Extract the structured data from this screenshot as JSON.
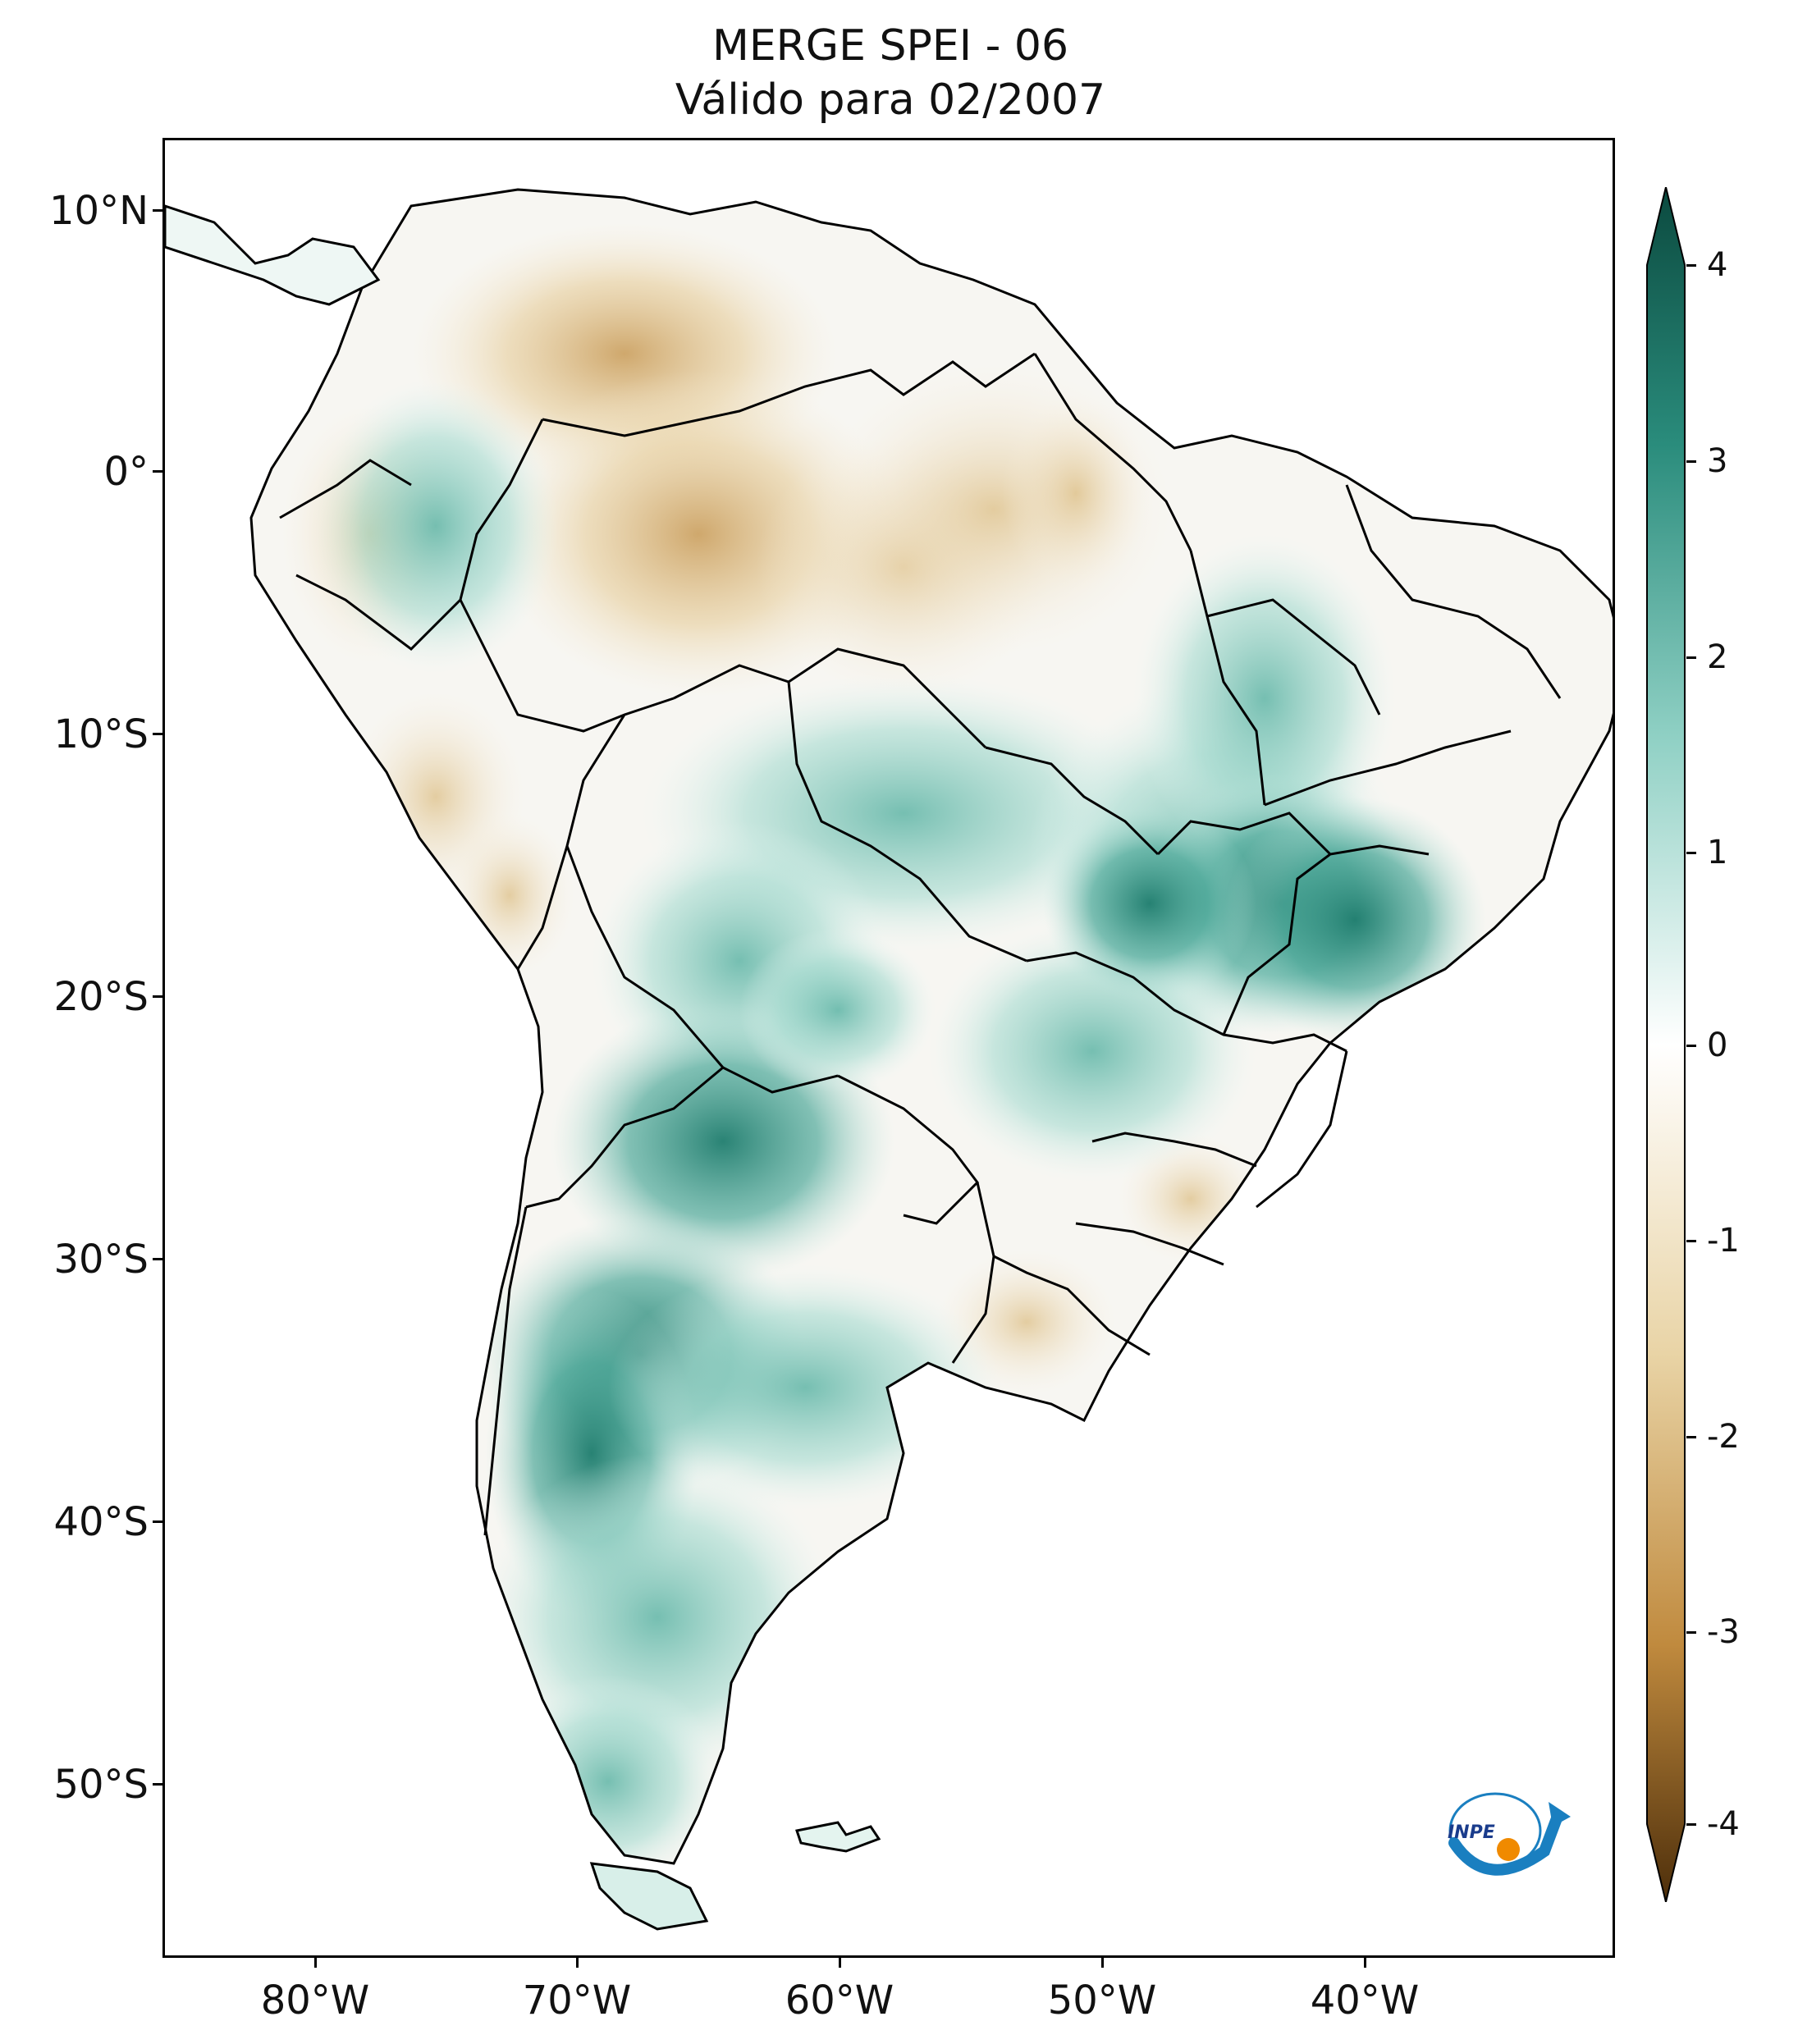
{
  "title": {
    "line1": "MERGE   SPEI - 06",
    "line2": "Válido para 02/2007"
  },
  "axes": {
    "lat_ticks": [
      "10°N",
      "0°",
      "10°S",
      "20°S",
      "30°S",
      "40°S",
      "50°S"
    ],
    "lon_ticks": [
      "80°W",
      "70°W",
      "60°W",
      "50°W",
      "40°W"
    ]
  },
  "colorbar": {
    "ticks": [
      "4",
      "3",
      "2",
      "1",
      "0",
      "-1",
      "-2",
      "-3",
      "-4"
    ],
    "colors": {
      "max": "#0b4a3f",
      "high": "#2a8c7c",
      "mid_high": "#8fd0c4",
      "zero": "#ffffff",
      "mid_low": "#e9d4a6",
      "low": "#c08a3e",
      "min": "#4d2e0a"
    }
  },
  "logo": {
    "text": "INPE"
  }
}
